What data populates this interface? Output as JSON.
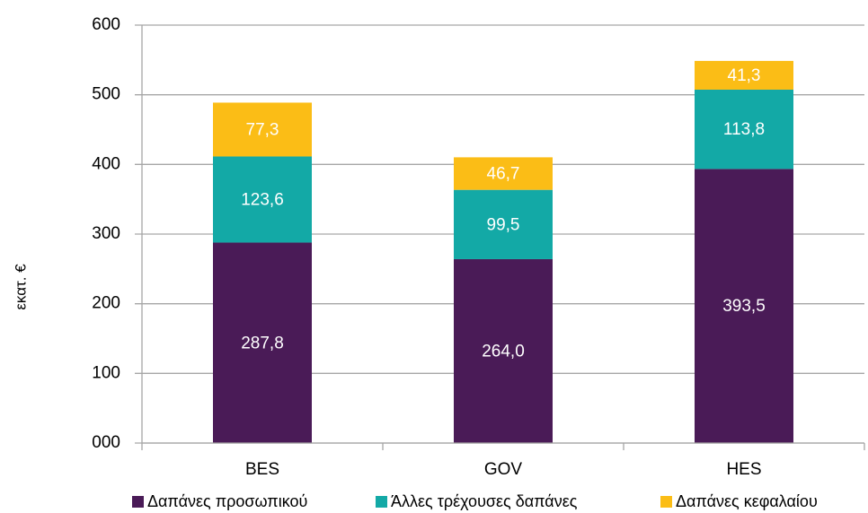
{
  "chart_data": {
    "type": "stacked_bar",
    "y_label": "εκατ. €",
    "categories": [
      "BES",
      "GOV",
      "HES"
    ],
    "series": [
      {
        "name": "Δαπάνες προσωπικού",
        "color": "#4a1b57",
        "values": [
          287.8,
          264.0,
          393.5
        ],
        "value_labels": [
          "287,8",
          "264,0",
          "393,5"
        ]
      },
      {
        "name": "Άλλες τρέχουσες δαπάνες",
        "color": "#13a9a6",
        "values": [
          123.6,
          99.5,
          113.8
        ],
        "value_labels": [
          "123,6",
          "99,5",
          "113,8"
        ]
      },
      {
        "name": "Δαπάνες κεφαλαίου",
        "color": "#fbbd16",
        "values": [
          77.3,
          46.7,
          41.3
        ],
        "value_labels": [
          "77,3",
          "46,7",
          "41,3"
        ]
      }
    ],
    "ylim": [
      0,
      600
    ],
    "yticks": [
      {
        "value": 0,
        "label": "000"
      },
      100,
      200,
      300,
      400,
      500,
      600
    ],
    "grid": true,
    "legend": "bottom"
  }
}
